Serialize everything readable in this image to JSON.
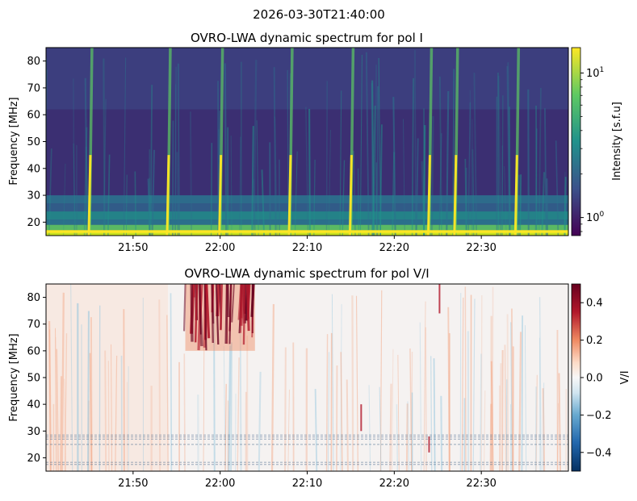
{
  "figure": {
    "suptitle": "2026-03-30T21:40:00"
  },
  "chart_data": [
    {
      "type": "heatmap",
      "title": "OVRO-LWA dynamic spectrum for pol I",
      "xlabel": "",
      "ylabel": "Frequency [MHz]",
      "x_range": [
        "21:40",
        "22:40"
      ],
      "xticks": [
        "21:50",
        "22:00",
        "22:10",
        "22:20",
        "22:30"
      ],
      "ylim": [
        15,
        85
      ],
      "yticks": [
        20,
        30,
        40,
        50,
        60,
        70,
        80
      ],
      "colormap": "viridis",
      "colorbar": {
        "label": "Intensity [s.f.u]",
        "scale": "log",
        "range": [
          0.75,
          15
        ],
        "ticks": [
          {
            "value": 1,
            "base": "10",
            "exp": "0"
          },
          {
            "value": 10,
            "base": "10",
            "exp": "1"
          }
        ]
      },
      "bright_bursts_time": [
        "21:45",
        "21:54",
        "22:00",
        "22:08",
        "22:15",
        "22:24",
        "22:27",
        "22:34"
      ],
      "colors": {
        "low": "#440154",
        "mid": "#21918c",
        "high": "#fde725"
      }
    },
    {
      "type": "heatmap",
      "title": "OVRO-LWA dynamic spectrum for pol V/I",
      "xlabel": "",
      "ylabel": "Frequency [MHz]",
      "x_range": [
        "21:40",
        "22:40"
      ],
      "xticks": [
        "21:50",
        "22:00",
        "22:10",
        "22:20",
        "22:30"
      ],
      "ylim": [
        15,
        85
      ],
      "yticks": [
        20,
        30,
        40,
        50,
        60,
        70,
        80
      ],
      "colormap": "RdBu_r",
      "colorbar": {
        "label": "V/I",
        "scale": "linear",
        "range": [
          -0.5,
          0.5
        ],
        "ticks": [
          {
            "value": 0.4,
            "label": "0.4"
          },
          {
            "value": 0.2,
            "label": "0.2"
          },
          {
            "value": 0.0,
            "label": "0.0"
          },
          {
            "value": -0.2,
            "label": "−0.2"
          },
          {
            "value": -0.4,
            "label": "−0.4"
          }
        ]
      },
      "strong_positive_region": {
        "time": [
          "21:56",
          "22:04"
        ],
        "freq_MHz": [
          60,
          85
        ],
        "value": 0.45
      },
      "colors": {
        "negative": "#053061",
        "zero": "#f7f7f7",
        "positive": "#67001f"
      }
    }
  ]
}
